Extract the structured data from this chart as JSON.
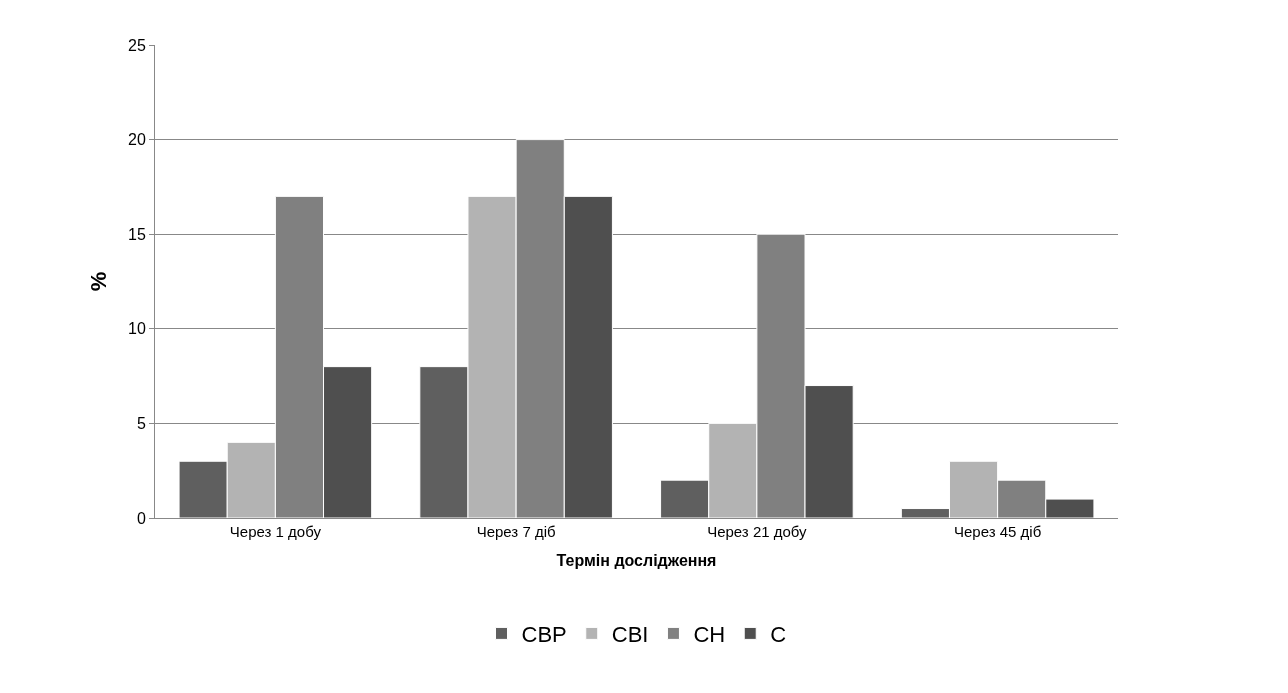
{
  "chart_data": {
    "type": "bar",
    "xlabel": "Термін дослідження",
    "ylabel": "%",
    "categories": [
      "Через 1 добу",
      "Через 7 діб",
      "Через 21 добу",
      "Через 45 діб"
    ],
    "series": [
      {
        "name": "СВР",
        "color": "#5f5f5f",
        "values": [
          3,
          8,
          2,
          0.5
        ]
      },
      {
        "name": "СВІ",
        "color": "#b3b3b3",
        "values": [
          4,
          17,
          5,
          3
        ]
      },
      {
        "name": "СН",
        "color": "#808080",
        "values": [
          17,
          20,
          15,
          2
        ]
      },
      {
        "name": "С",
        "color": "#4f4f4f",
        "values": [
          8,
          17,
          7,
          1
        ]
      }
    ],
    "ylim": [
      0,
      25
    ],
    "yticks": [
      0,
      5,
      10,
      15,
      20,
      25
    ],
    "grid": "y",
    "legend": "bottom"
  }
}
